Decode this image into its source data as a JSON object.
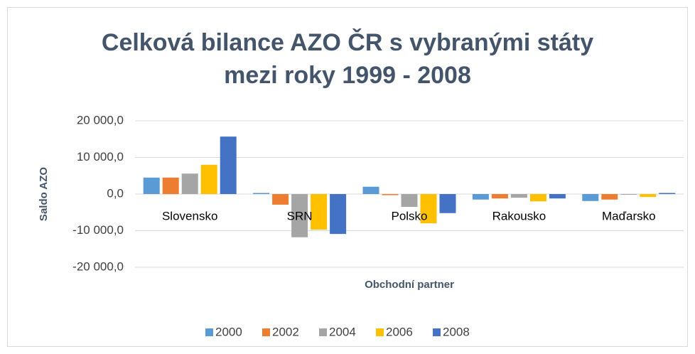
{
  "chart_data": {
    "type": "bar",
    "title": [
      "Celková bilance AZO ČR s vybranými státy",
      "mezi roky 1999 - 2008"
    ],
    "x_label": "Obchodní partner",
    "y_label": "Saldo AZO",
    "categories": [
      "Slovensko",
      "SRN",
      "Polsko",
      "Rakousko",
      "Maďarsko"
    ],
    "series": [
      {
        "name": "2000",
        "color": "#5b9bd5",
        "values": [
          4500,
          300,
          2000,
          -1500,
          -1900
        ]
      },
      {
        "name": "2002",
        "color": "#ed7d31",
        "values": [
          4500,
          -2900,
          -300,
          -1200,
          -1500
        ]
      },
      {
        "name": "2004",
        "color": "#a5a5a5",
        "values": [
          5600,
          -11800,
          -3500,
          -1000,
          -200
        ]
      },
      {
        "name": "2006",
        "color": "#ffc000",
        "values": [
          8000,
          -9700,
          -8000,
          -2000,
          -800
        ]
      },
      {
        "name": "2008",
        "color": "#4472c4",
        "values": [
          15700,
          -10900,
          -5200,
          -1200,
          300
        ]
      }
    ],
    "ylim": [
      -20000,
      20000
    ],
    "yticks": [
      {
        "value": -20000,
        "label": "-20 000,0"
      },
      {
        "value": -10000,
        "label": "-10 000,0"
      },
      {
        "value": 0,
        "label": "0,0"
      },
      {
        "value": 10000,
        "label": "10 000,0"
      },
      {
        "value": 20000,
        "label": "20 000,0"
      }
    ],
    "grid": true,
    "legend": "bottom"
  }
}
